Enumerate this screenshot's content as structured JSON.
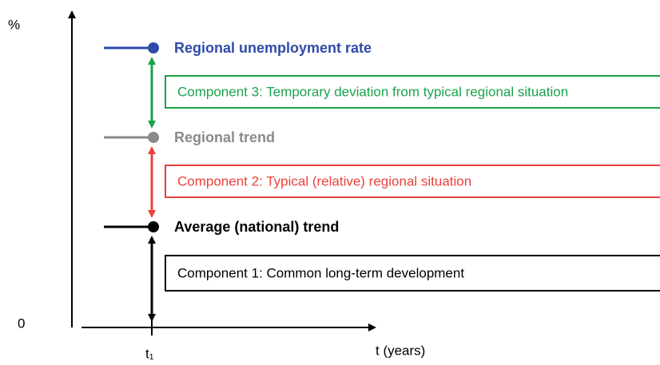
{
  "axes": {
    "y_label": "%",
    "origin_label": "0",
    "x_tick_label": "t₁",
    "x_label": "t (years)"
  },
  "levels": [
    {
      "label": "Regional unemployment rate"
    },
    {
      "label": "Regional trend"
    },
    {
      "label": "Average (national) trend"
    }
  ],
  "components": [
    {
      "label": "Component 3: Temporary deviation from typical regional situation"
    },
    {
      "label": "Component 2: Typical (relative) regional situation"
    },
    {
      "label": "Component 1: Common long-term development"
    }
  ]
}
